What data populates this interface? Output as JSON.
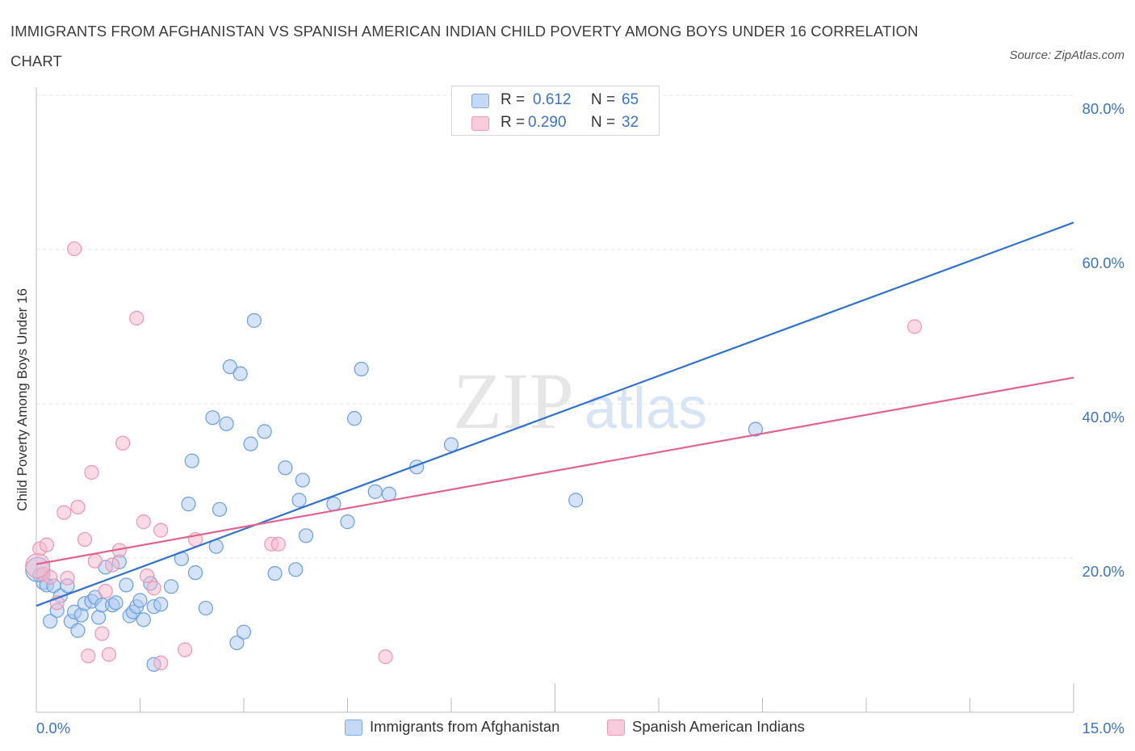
{
  "title": "IMMIGRANTS FROM AFGHANISTAN VS SPANISH AMERICAN INDIAN CHILD POVERTY AMONG BOYS UNDER 16 CORRELATION CHART",
  "source": "Source: ZipAtlas.com",
  "watermark": {
    "zip": "ZIP",
    "atlas": "atlas"
  },
  "stats": [
    {
      "r_label": "R =",
      "r_value": "0.612",
      "n_label": "N =",
      "n_value": "65",
      "color": "#a9c8f0"
    },
    {
      "r_label": "R =",
      "r_value": "0.290",
      "n_label": "N =",
      "n_value": "32",
      "color": "#f5b8cc"
    }
  ],
  "legend": [
    {
      "label": "Immigrants from Afghanistan",
      "color": "#a9c8f0"
    },
    {
      "label": "Spanish American Indians",
      "color": "#f5b8cc"
    }
  ],
  "chart_data": {
    "type": "scatter",
    "title": "IMMIGRANTS FROM AFGHANISTAN VS SPANISH AMERICAN INDIAN CHILD POVERTY AMONG BOYS UNDER 16 CORRELATION CHART",
    "xlabel": "",
    "ylabel": "Child Poverty Among Boys Under 16",
    "xlim": [
      0,
      15
    ],
    "ylim": [
      0,
      80
    ],
    "x_tick_labels": [
      "0.0%",
      "15.0%"
    ],
    "y_ticks": [
      20,
      40,
      60,
      80
    ],
    "y_tick_labels": [
      "20.0%",
      "40.0%",
      "60.0%",
      "80.0%"
    ],
    "grid": true,
    "series": [
      {
        "name": "Immigrants from Afghanistan",
        "color": "#6a9fe0",
        "fill": "#a9c8f0",
        "trend": {
          "x": [
            0,
            15
          ],
          "y": [
            13.8,
            63.5
          ],
          "color": "#2f72d0"
        },
        "points": [
          [
            0.05,
            17.8
          ],
          [
            0.1,
            16.8
          ],
          [
            0.15,
            16.5
          ],
          [
            0.2,
            11.8
          ],
          [
            0.25,
            16.4
          ],
          [
            0.3,
            13.2
          ],
          [
            0.35,
            15.1
          ],
          [
            0.45,
            16.4
          ],
          [
            0.5,
            11.8
          ],
          [
            0.55,
            13
          ],
          [
            0.6,
            10.6
          ],
          [
            0.65,
            12.6
          ],
          [
            0.7,
            14.1
          ],
          [
            0.8,
            14.4
          ],
          [
            0.85,
            14.9
          ],
          [
            0.9,
            12.3
          ],
          [
            0.95,
            13.9
          ],
          [
            1.0,
            18.8
          ],
          [
            1.1,
            13.9
          ],
          [
            1.15,
            14.2
          ],
          [
            1.2,
            19.5
          ],
          [
            1.3,
            16.5
          ],
          [
            1.35,
            12.5
          ],
          [
            1.4,
            13
          ],
          [
            1.45,
            13.7
          ],
          [
            1.5,
            14.5
          ],
          [
            1.55,
            12
          ],
          [
            1.65,
            16.7
          ],
          [
            1.7,
            13.7
          ],
          [
            1.8,
            14
          ],
          [
            1.95,
            16.3
          ],
          [
            2.1,
            19.9
          ],
          [
            2.2,
            27
          ],
          [
            2.25,
            32.6
          ],
          [
            2.3,
            18.1
          ],
          [
            2.45,
            13.5
          ],
          [
            2.6,
            21.5
          ],
          [
            2.65,
            26.3
          ],
          [
            2.55,
            38.2
          ],
          [
            2.75,
            37.4
          ],
          [
            2.8,
            44.8
          ],
          [
            2.9,
            9
          ],
          [
            2.95,
            43.9
          ],
          [
            3.0,
            10.4
          ],
          [
            3.1,
            34.8
          ],
          [
            3.15,
            50.8
          ],
          [
            3.3,
            36.4
          ],
          [
            3.45,
            18
          ],
          [
            3.6,
            31.7
          ],
          [
            3.75,
            18.5
          ],
          [
            3.8,
            27.5
          ],
          [
            3.85,
            30.1
          ],
          [
            3.9,
            22.9
          ],
          [
            4.3,
            27
          ],
          [
            4.5,
            24.7
          ],
          [
            4.6,
            38.1
          ],
          [
            4.7,
            44.5
          ],
          [
            4.9,
            28.6
          ],
          [
            5.1,
            28.3
          ],
          [
            5.5,
            31.8
          ],
          [
            6.0,
            34.7
          ],
          [
            7.8,
            27.5
          ],
          [
            10.4,
            36.7
          ],
          [
            1.7,
            6.2
          ],
          [
            0.02,
            18.5
          ]
        ]
      },
      {
        "name": "Spanish American Indians",
        "color": "#ee94b2",
        "fill": "#f5b8cc",
        "trend": {
          "x": [
            0,
            15
          ],
          "y": [
            19.2,
            43.4
          ],
          "color": "#e2638f"
        },
        "points": [
          [
            0.05,
            21.2
          ],
          [
            0.1,
            17.9
          ],
          [
            0.15,
            21.7
          ],
          [
            0.2,
            17.5
          ],
          [
            0.3,
            14.2
          ],
          [
            0.4,
            25.9
          ],
          [
            0.45,
            17.4
          ],
          [
            0.55,
            60.1
          ],
          [
            0.6,
            26.6
          ],
          [
            0.7,
            22.4
          ],
          [
            0.75,
            7.3
          ],
          [
            0.8,
            31.1
          ],
          [
            0.85,
            19.6
          ],
          [
            0.95,
            10.2
          ],
          [
            1.0,
            15.7
          ],
          [
            1.05,
            7.5
          ],
          [
            1.1,
            19.1
          ],
          [
            1.2,
            21
          ],
          [
            1.25,
            34.9
          ],
          [
            1.45,
            51.1
          ],
          [
            1.55,
            24.7
          ],
          [
            1.6,
            17.7
          ],
          [
            1.7,
            16.1
          ],
          [
            1.8,
            23.6
          ],
          [
            1.8,
            6.4
          ],
          [
            2.15,
            8.1
          ],
          [
            2.3,
            22.4
          ],
          [
            3.4,
            21.8
          ],
          [
            3.5,
            21.8
          ],
          [
            5.05,
            7.2
          ],
          [
            12.7,
            50
          ],
          [
            0.02,
            19
          ]
        ]
      }
    ]
  }
}
